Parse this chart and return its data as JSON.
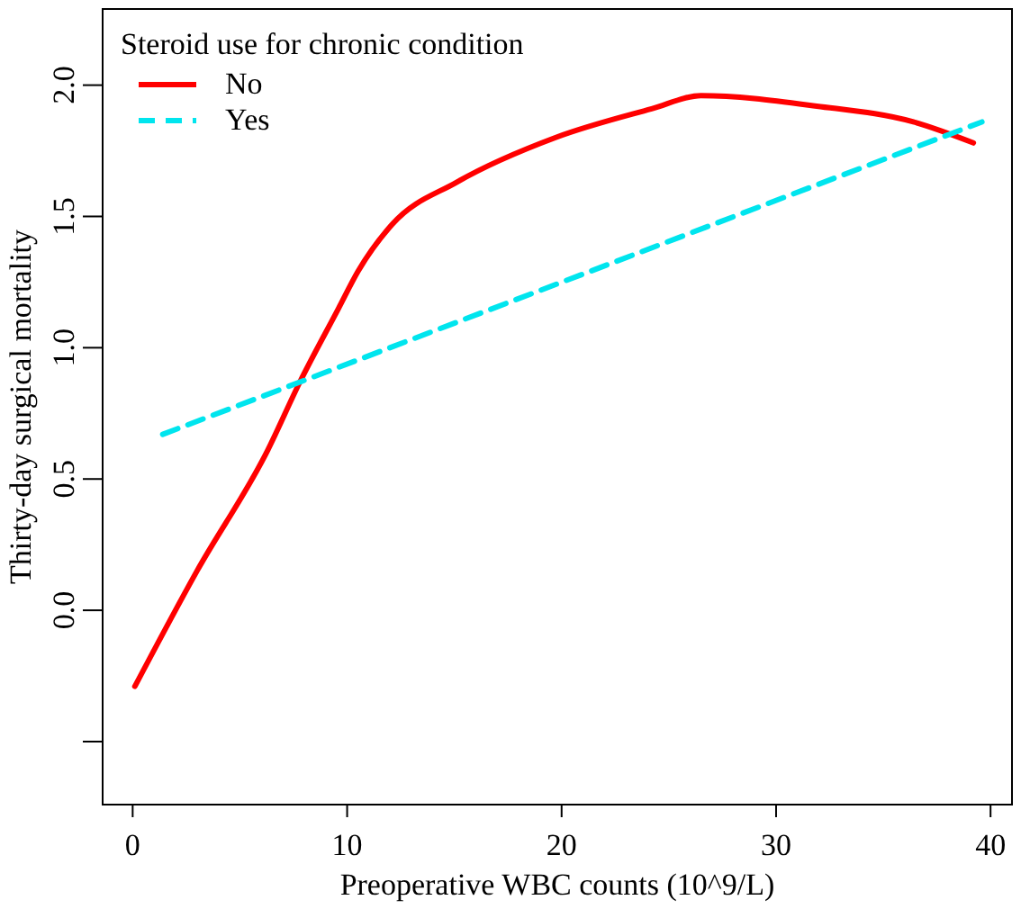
{
  "chart_data": {
    "type": "line",
    "xlabel": "Preoperative WBC counts (10^9/L)",
    "ylabel": "Thirty-day surgical mortality",
    "legend_title": "Steroid use for chronic condition",
    "legend": "top left",
    "grid": false,
    "marker": "none",
    "xlim": [
      -1.4,
      41.0
    ],
    "ylim": [
      -0.74,
      2.29
    ],
    "xticks": [
      0,
      10,
      20,
      30,
      40
    ],
    "yticks": [
      {
        "value": -0.5,
        "label": null
      },
      {
        "value": 0,
        "label": "0.0"
      },
      {
        "value": 0.5,
        "label": "0.5"
      },
      {
        "value": 1,
        "label": "1.0"
      },
      {
        "value": 1.5,
        "label": "1.5"
      },
      {
        "value": 2,
        "label": "2.0"
      }
    ],
    "series": [
      {
        "name": "No",
        "color": "#ff0000",
        "line_style": "solid",
        "x": [
          0.1,
          3,
          6.3,
          7.8,
          9.6,
          10.5,
          12.1,
          15.1,
          19.7,
          24.2,
          26.5,
          31.9,
          36.4,
          39.2
        ],
        "values": [
          -0.29,
          0.15,
          0.61,
          0.87,
          1.15,
          1.29,
          1.47,
          1.63,
          1.8,
          1.91,
          1.96,
          1.92,
          1.86,
          1.78
        ]
      },
      {
        "name": "Yes",
        "color": "#00e5ee",
        "line_style": "dashed",
        "x": [
          1.4,
          39.6
        ],
        "values": [
          0.67,
          1.86
        ]
      }
    ]
  }
}
